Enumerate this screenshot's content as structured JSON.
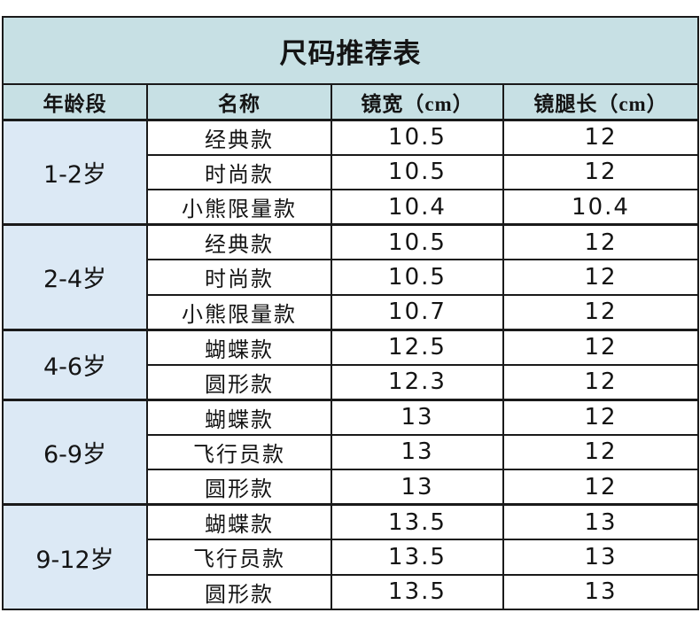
{
  "title": "尺码推荐表",
  "chart_data": {
    "type": "table",
    "title": "尺码推荐表",
    "columns": [
      "年龄段",
      "名称",
      "镜宽（cm）",
      "镜腿长（cm）"
    ],
    "groups": [
      {
        "age_range": "1-2岁",
        "rows": [
          {
            "name": "经典款",
            "lens_width_cm": "10.5",
            "temple_length_cm": "12"
          },
          {
            "name": "时尚款",
            "lens_width_cm": "10.5",
            "temple_length_cm": "12"
          },
          {
            "name": "小熊限量款",
            "lens_width_cm": "10.4",
            "temple_length_cm": "10.4"
          }
        ]
      },
      {
        "age_range": "2-4岁",
        "rows": [
          {
            "name": "经典款",
            "lens_width_cm": "10.5",
            "temple_length_cm": "12"
          },
          {
            "name": "时尚款",
            "lens_width_cm": "10.5",
            "temple_length_cm": "12"
          },
          {
            "name": "小熊限量款",
            "lens_width_cm": "10.7",
            "temple_length_cm": "12"
          }
        ]
      },
      {
        "age_range": "4-6岁",
        "rows": [
          {
            "name": "蝴蝶款",
            "lens_width_cm": "12.5",
            "temple_length_cm": "12"
          },
          {
            "name": "圆形款",
            "lens_width_cm": "12.3",
            "temple_length_cm": "12"
          }
        ]
      },
      {
        "age_range": "6-9岁",
        "rows": [
          {
            "name": "蝴蝶款",
            "lens_width_cm": "13",
            "temple_length_cm": "12"
          },
          {
            "name": "飞行员款",
            "lens_width_cm": "13",
            "temple_length_cm": "12"
          },
          {
            "name": "圆形款",
            "lens_width_cm": "13",
            "temple_length_cm": "12"
          }
        ]
      },
      {
        "age_range": "9-12岁",
        "rows": [
          {
            "name": "蝴蝶款",
            "lens_width_cm": "13.5",
            "temple_length_cm": "13"
          },
          {
            "name": "飞行员款",
            "lens_width_cm": "13.5",
            "temple_length_cm": "13"
          },
          {
            "name": "圆形款",
            "lens_width_cm": "13.5",
            "temple_length_cm": "13"
          }
        ]
      }
    ]
  },
  "colors": {
    "header_bg": "#c7e0e4",
    "age_column_bg": "#dce9f5",
    "cell_bg": "#ffffff",
    "border": "#1a1a1a",
    "text": "#141414"
  }
}
